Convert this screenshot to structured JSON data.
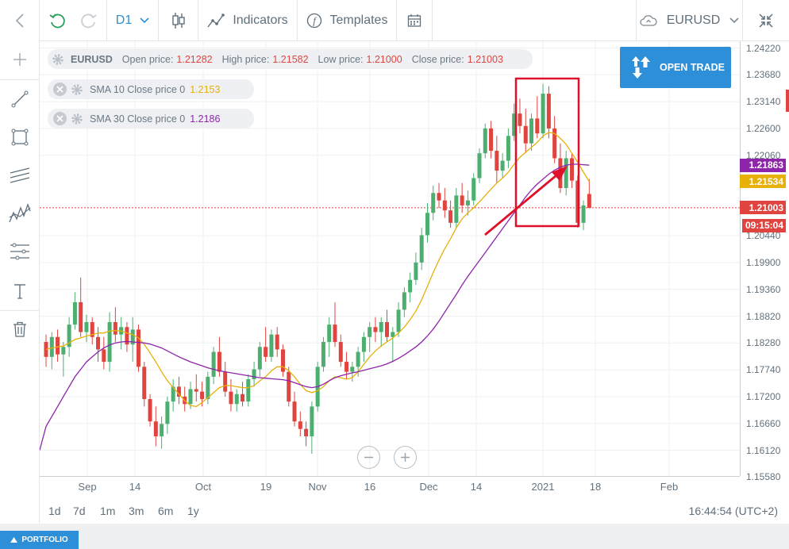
{
  "toolbar": {
    "timeframe": "D1",
    "indicators_label": "Indicators",
    "templates_label": "Templates",
    "symbol": "EURUSD"
  },
  "ohlc": {
    "symbol": "EURUSD",
    "open_label": "Open price:",
    "open": "1.21282",
    "high_label": "High price:",
    "high": "1.21582",
    "low_label": "Low price:",
    "low": "1.21000",
    "close_label": "Close price:",
    "close": "1.21003"
  },
  "indicators": [
    {
      "label": "SMA 10 Close price 0",
      "value": "1.2153",
      "color": "#e7b10a"
    },
    {
      "label": "SMA 30 Close price 0",
      "value": "1.2186",
      "color": "#8e24aa"
    }
  ],
  "trade_button": "OPEN TRADE",
  "price_tags": {
    "sma30": "1.21863",
    "sma10": "1.21534",
    "last": "1.21003",
    "countdown": "09:15:04"
  },
  "period_buttons": [
    "1d",
    "7d",
    "1m",
    "3m",
    "6m",
    "1y"
  ],
  "clock": "16:44:54 (UTC+2)",
  "portfolio_label": "PORTFOLIO",
  "colors": {
    "bull": "#4cae6f",
    "bear": "#e0443e",
    "sma10": "#e7b10a",
    "sma30": "#8e24aa",
    "accent": "#2d8fd7",
    "annotation": "#e0102a"
  },
  "chart_data": {
    "type": "candlestick",
    "symbol": "EURUSD",
    "timeframe": "D1",
    "y_ticks": [
      "1.24220",
      "1.23680",
      "1.23140",
      "1.22600",
      "1.22060",
      "1.20440",
      "1.19900",
      "1.19360",
      "1.18820",
      "1.18280",
      "1.17740",
      "1.17200",
      "1.16660",
      "1.16120",
      "1.15580"
    ],
    "ylim": [
      1.1546,
      1.2436
    ],
    "x_ticks": [
      "Sep",
      "14",
      "Oct",
      "19",
      "Nov",
      "16",
      "Dec",
      "14",
      "2021",
      "18",
      "Feb"
    ],
    "candles_ohlc": [
      [
        1.183,
        1.1845,
        1.178,
        1.18
      ],
      [
        1.18,
        1.185,
        1.1775,
        1.184
      ],
      [
        1.184,
        1.1855,
        1.179,
        1.1805
      ],
      [
        1.1805,
        1.183,
        1.176,
        1.182
      ],
      [
        1.182,
        1.188,
        1.18,
        1.1865
      ],
      [
        1.1865,
        1.193,
        1.1855,
        1.191
      ],
      [
        1.191,
        1.196,
        1.184,
        1.185
      ],
      [
        1.185,
        1.1885,
        1.183,
        1.187
      ],
      [
        1.187,
        1.188,
        1.1825,
        1.184
      ],
      [
        1.184,
        1.186,
        1.179,
        1.1815
      ],
      [
        1.1815,
        1.184,
        1.1775,
        1.179
      ],
      [
        1.179,
        1.189,
        1.177,
        1.187
      ],
      [
        1.187,
        1.19,
        1.183,
        1.1845
      ],
      [
        1.1845,
        1.188,
        1.1815,
        1.186
      ],
      [
        1.186,
        1.187,
        1.181,
        1.1825
      ],
      [
        1.1825,
        1.188,
        1.179,
        1.1855
      ],
      [
        1.1855,
        1.1865,
        1.177,
        1.178
      ],
      [
        1.178,
        1.179,
        1.17,
        1.1715
      ],
      [
        1.1715,
        1.1725,
        1.166,
        1.167
      ],
      [
        1.167,
        1.17,
        1.162,
        1.164
      ],
      [
        1.164,
        1.168,
        1.1615,
        1.1665
      ],
      [
        1.1665,
        1.172,
        1.1645,
        1.171
      ],
      [
        1.171,
        1.1755,
        1.169,
        1.174
      ],
      [
        1.174,
        1.176,
        1.1705,
        1.172
      ],
      [
        1.172,
        1.174,
        1.169,
        1.1705
      ],
      [
        1.1705,
        1.175,
        1.1695,
        1.1735
      ],
      [
        1.1735,
        1.1765,
        1.171,
        1.173
      ],
      [
        1.173,
        1.175,
        1.17,
        1.1715
      ],
      [
        1.1715,
        1.177,
        1.1705,
        1.176
      ],
      [
        1.176,
        1.182,
        1.1745,
        1.181
      ],
      [
        1.181,
        1.184,
        1.176,
        1.177
      ],
      [
        1.177,
        1.179,
        1.172,
        1.173
      ],
      [
        1.173,
        1.1755,
        1.169,
        1.1705
      ],
      [
        1.1705,
        1.1735,
        1.169,
        1.1725
      ],
      [
        1.1725,
        1.175,
        1.17,
        1.171
      ],
      [
        1.171,
        1.1765,
        1.17,
        1.1755
      ],
      [
        1.1755,
        1.179,
        1.174,
        1.1775
      ],
      [
        1.1775,
        1.183,
        1.176,
        1.182
      ],
      [
        1.182,
        1.186,
        1.179,
        1.18
      ],
      [
        1.18,
        1.1855,
        1.179,
        1.1845
      ],
      [
        1.1845,
        1.186,
        1.18,
        1.1815
      ],
      [
        1.1815,
        1.1825,
        1.176,
        1.177
      ],
      [
        1.177,
        1.178,
        1.17,
        1.171
      ],
      [
        1.171,
        1.173,
        1.166,
        1.167
      ],
      [
        1.167,
        1.169,
        1.164,
        1.1655
      ],
      [
        1.1655,
        1.167,
        1.162,
        1.164
      ],
      [
        1.164,
        1.171,
        1.1605,
        1.17
      ],
      [
        1.17,
        1.179,
        1.169,
        1.178
      ],
      [
        1.178,
        1.184,
        1.177,
        1.183
      ],
      [
        1.183,
        1.188,
        1.18,
        1.1865
      ],
      [
        1.1865,
        1.191,
        1.182,
        1.183
      ],
      [
        1.183,
        1.1845,
        1.178,
        1.179
      ],
      [
        1.179,
        1.181,
        1.1755,
        1.177
      ],
      [
        1.177,
        1.179,
        1.175,
        1.178
      ],
      [
        1.178,
        1.182,
        1.176,
        1.181
      ],
      [
        1.181,
        1.185,
        1.179,
        1.184
      ],
      [
        1.184,
        1.187,
        1.181,
        1.186
      ],
      [
        1.186,
        1.188,
        1.183,
        1.185
      ],
      [
        1.185,
        1.188,
        1.182,
        1.187
      ],
      [
        1.187,
        1.1895,
        1.183,
        1.184
      ],
      [
        1.184,
        1.186,
        1.179,
        1.185
      ],
      [
        1.185,
        1.191,
        1.184,
        1.1895
      ],
      [
        1.1895,
        1.194,
        1.188,
        1.193
      ],
      [
        1.193,
        1.197,
        1.191,
        1.1955
      ],
      [
        1.1955,
        1.201,
        1.1945,
        1.199
      ],
      [
        1.199,
        1.206,
        1.1975,
        1.2045
      ],
      [
        1.2045,
        1.211,
        1.203,
        1.209
      ],
      [
        1.209,
        1.2145,
        1.2075,
        1.213
      ],
      [
        1.213,
        1.215,
        1.21,
        1.2115
      ],
      [
        1.2115,
        1.214,
        1.208,
        1.2095
      ],
      [
        1.2095,
        1.2115,
        1.206,
        1.207
      ],
      [
        1.207,
        1.214,
        1.206,
        1.2125
      ],
      [
        1.2125,
        1.215,
        1.209,
        1.2105
      ],
      [
        1.2105,
        1.2135,
        1.2085,
        1.2115
      ],
      [
        1.2115,
        1.217,
        1.2105,
        1.216
      ],
      [
        1.216,
        1.222,
        1.215,
        1.221
      ],
      [
        1.221,
        1.227,
        1.22,
        1.226
      ],
      [
        1.226,
        1.2275,
        1.22,
        1.2215
      ],
      [
        1.2215,
        1.2245,
        1.215,
        1.2175
      ],
      [
        1.2175,
        1.221,
        1.216,
        1.2195
      ],
      [
        1.2195,
        1.226,
        1.218,
        1.2245
      ],
      [
        1.2245,
        1.231,
        1.2235,
        1.229
      ],
      [
        1.229,
        1.232,
        1.225,
        1.2265
      ],
      [
        1.2265,
        1.23,
        1.221,
        1.223
      ],
      [
        1.223,
        1.229,
        1.2215,
        1.228
      ],
      [
        1.228,
        1.2325,
        1.224,
        1.225
      ],
      [
        1.225,
        1.235,
        1.224,
        1.233
      ],
      [
        1.233,
        1.2345,
        1.224,
        1.226
      ],
      [
        1.226,
        1.2285,
        1.219,
        1.22
      ],
      [
        1.22,
        1.223,
        1.213,
        1.214
      ],
      [
        1.214,
        1.2215,
        1.2125,
        1.22
      ],
      [
        1.22,
        1.221,
        1.214,
        1.2155
      ],
      [
        1.2155,
        1.2165,
        1.206,
        1.207
      ],
      [
        1.207,
        1.2115,
        1.2055,
        1.2105
      ],
      [
        1.2128,
        1.2158,
        1.21,
        1.21
      ]
    ],
    "sma10": [
      1.1815,
      1.1818,
      1.182,
      1.1822,
      1.1828,
      1.1835,
      1.1838,
      1.1842,
      1.1845,
      1.1848,
      1.1848,
      1.1852,
      1.1853,
      1.1852,
      1.1848,
      1.1845,
      1.1838,
      1.1825,
      1.1808,
      1.179,
      1.177,
      1.1752,
      1.1738,
      1.1725,
      1.1712,
      1.1702,
      1.17,
      1.1708,
      1.1718,
      1.1728,
      1.1738,
      1.1742,
      1.1742,
      1.174,
      1.1738,
      1.1738,
      1.1742,
      1.1752,
      1.176,
      1.1772,
      1.178,
      1.178,
      1.1772,
      1.176,
      1.1745,
      1.1732,
      1.1728,
      1.1732,
      1.174,
      1.1752,
      1.176,
      1.1758,
      1.1755,
      1.1758,
      1.177,
      1.1785,
      1.18,
      1.1812,
      1.1822,
      1.183,
      1.1838,
      1.1848,
      1.186,
      1.1875,
      1.1892,
      1.1915,
      1.1942,
      1.197,
      1.1995,
      1.2018,
      1.2038,
      1.206,
      1.2078,
      1.209,
      1.21,
      1.2112,
      1.2125,
      1.2138,
      1.215,
      1.216,
      1.2172,
      1.2188,
      1.2202,
      1.2212,
      1.2222,
      1.2232,
      1.2245,
      1.2252,
      1.225,
      1.224,
      1.2228,
      1.221,
      1.2192,
      1.2172,
      1.2153
    ],
    "sma30": [
      1.166,
      1.168,
      1.17,
      1.172,
      1.174,
      1.176,
      1.1775,
      1.179,
      1.18,
      1.181,
      1.1818,
      1.1824,
      1.1828,
      1.183,
      1.1831,
      1.183,
      1.1829,
      1.1828,
      1.1826,
      1.1822,
      1.1818,
      1.1812,
      1.1806,
      1.18,
      1.1795,
      1.179,
      1.1786,
      1.1782,
      1.1778,
      1.1775,
      1.1772,
      1.177,
      1.1768,
      1.1766,
      1.1764,
      1.1762,
      1.176,
      1.1758,
      1.1757,
      1.1756,
      1.1755,
      1.1754,
      1.1752,
      1.1748,
      1.1744,
      1.174,
      1.1738,
      1.174,
      1.1745,
      1.1752,
      1.1758,
      1.1762,
      1.1765,
      1.1768,
      1.177,
      1.1773,
      1.1776,
      1.1779,
      1.1782,
      1.1786,
      1.1791,
      1.1797,
      1.1804,
      1.1812,
      1.182,
      1.183,
      1.1842,
      1.1856,
      1.1872,
      1.189,
      1.1908,
      1.1926,
      1.1945,
      1.1962,
      1.1978,
      1.1994,
      1.201,
      1.2026,
      1.2042,
      1.2058,
      1.2074,
      1.209,
      1.2106,
      1.2122,
      1.2136,
      1.2148,
      1.2158,
      1.2168,
      1.2176,
      1.2182,
      1.2186,
      1.2188,
      1.2188,
      1.2187,
      1.2186
    ]
  }
}
